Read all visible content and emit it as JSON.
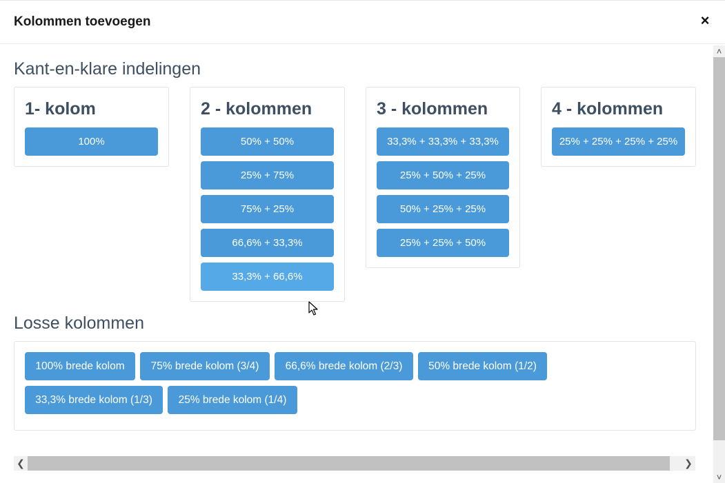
{
  "modal": {
    "title": "Kolommen toevoegen",
    "close_symbol": "×"
  },
  "presets": {
    "heading": "Kant-en-klare indelingen",
    "groups": [
      {
        "title": "1- kolom",
        "options": [
          "100%"
        ]
      },
      {
        "title": "2 - kolommen",
        "options": [
          "50% + 50%",
          "25% + 75%",
          "75% + 25%",
          "66,6% + 33,3%",
          "33,3% + 66,6%"
        ]
      },
      {
        "title": "3 - kolommen",
        "options": [
          "33,3% + 33,3% + 33,3%",
          "25% + 50% + 25%",
          "50% + 25% + 25%",
          "25% + 25% + 50%"
        ]
      },
      {
        "title": "4 - kolommen",
        "options": [
          "25% + 25% + 25% + 25%"
        ]
      }
    ]
  },
  "loose": {
    "heading": "Losse kolommen",
    "buttons": [
      "100% brede kolom",
      "75% brede kolom (3/4)",
      "66,6% brede kolom (2/3)",
      "50% brede kolom (1/2)",
      "33,3% brede kolom (1/3)",
      "25% brede kolom (1/4)"
    ]
  },
  "colors": {
    "button": "#4a9ad9",
    "button_hover": "#55a9e6",
    "heading": "#3d4f61"
  }
}
